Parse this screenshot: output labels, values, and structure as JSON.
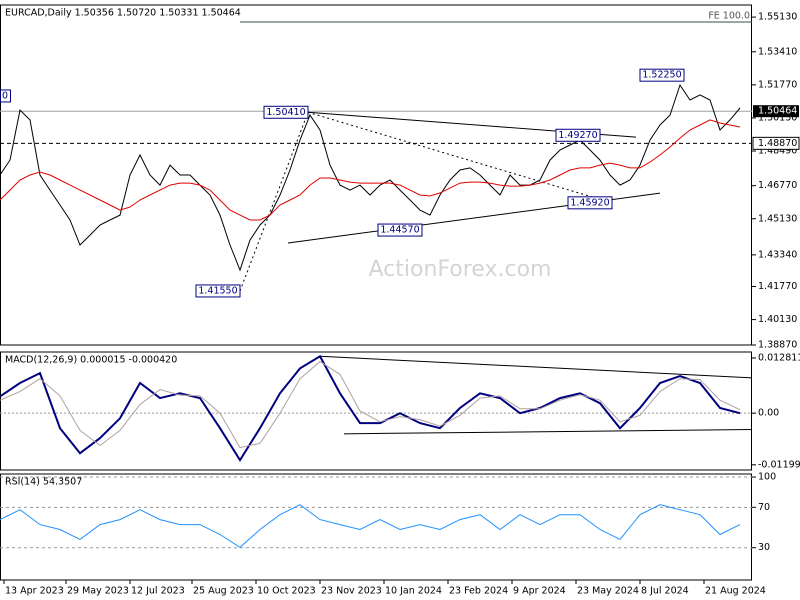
{
  "chart_data": [
    {
      "type": "line",
      "title": "EURCAD,Daily  1.50356 1.50720 1.50331 1.50464",
      "watermark": "ActionForex.com",
      "xlim": [
        0,
        376
      ],
      "ylim": [
        1.3887,
        1.5573
      ],
      "yticks": [
        {
          "value": 1.5513,
          "label": "1.55130"
        },
        {
          "value": 1.5341,
          "label": "1.53410"
        },
        {
          "value": 1.5177,
          "label": "1.51770"
        },
        {
          "value": 1.5013,
          "label": "1.50130"
        },
        {
          "value": 1.4849,
          "label": "1.48490"
        },
        {
          "value": 1.4677,
          "label": "1.46770"
        },
        {
          "value": 1.4513,
          "label": "1.45130"
        },
        {
          "value": 1.4334,
          "label": "1.43340"
        },
        {
          "value": 1.4177,
          "label": "1.41770"
        },
        {
          "value": 1.4013,
          "label": "1.40130"
        },
        {
          "value": 1.3887,
          "label": "1.38870"
        }
      ],
      "series": [
        {
          "color": "#000000",
          "line_width": 1,
          "x": [
            0,
            5,
            10,
            15,
            20,
            25,
            30,
            35,
            40,
            45,
            50,
            55,
            60,
            65,
            70,
            75,
            80,
            85,
            90,
            95,
            100,
            105,
            110,
            115,
            120,
            125,
            130,
            135,
            140,
            145,
            150,
            155,
            160,
            165,
            170,
            175,
            180,
            185,
            190,
            195,
            200,
            205,
            210,
            215,
            220,
            225,
            230,
            235,
            240,
            245,
            250,
            255,
            260,
            265,
            270,
            275,
            280,
            285,
            290,
            295,
            300,
            305,
            310,
            315,
            320,
            325,
            330,
            335,
            340,
            345,
            350,
            355,
            360,
            365,
            370
          ],
          "values": [
            1.473,
            1.4804,
            1.5052,
            1.5003,
            1.473,
            1.4655,
            1.4581,
            1.4507,
            1.4383,
            1.4432,
            1.4482,
            1.4507,
            1.4531,
            1.473,
            1.4829,
            1.473,
            1.468,
            1.4779,
            1.473,
            1.473,
            1.468,
            1.4631,
            1.4531,
            1.4383,
            1.4259,
            1.4407,
            1.4482,
            1.4531,
            1.4631,
            1.4755,
            1.4903,
            1.5027,
            1.4953,
            1.4779,
            1.468,
            1.4655,
            1.468,
            1.4631,
            1.468,
            1.4705,
            1.4655,
            1.4606,
            1.4556,
            1.4531,
            1.4631,
            1.4705,
            1.4755,
            1.4765,
            1.473,
            1.468,
            1.4631,
            1.473,
            1.468,
            1.468,
            1.4705,
            1.4804,
            1.4854,
            1.4879,
            1.4903,
            1.4854,
            1.4804,
            1.473,
            1.468,
            1.4705,
            1.4779,
            1.4903,
            1.4978,
            1.5027,
            1.5176,
            1.5102,
            1.5127,
            1.5102,
            1.4953,
            1.5003,
            1.5062
          ]
        },
        {
          "color": "#e00000",
          "line_width": 1,
          "x": [
            0,
            5,
            10,
            15,
            20,
            25,
            30,
            35,
            40,
            45,
            50,
            55,
            60,
            65,
            70,
            75,
            80,
            85,
            90,
            95,
            100,
            105,
            110,
            115,
            120,
            125,
            130,
            135,
            140,
            145,
            150,
            155,
            160,
            165,
            170,
            175,
            180,
            185,
            190,
            195,
            200,
            205,
            210,
            215,
            220,
            225,
            230,
            235,
            240,
            245,
            250,
            255,
            260,
            265,
            270,
            275,
            280,
            285,
            290,
            295,
            300,
            305,
            310,
            315,
            320,
            325,
            330,
            335,
            340,
            345,
            350,
            355,
            360,
            365,
            370
          ],
          "values": [
            1.4606,
            1.4655,
            1.4705,
            1.473,
            1.4745,
            1.473,
            1.4705,
            1.468,
            1.4655,
            1.4631,
            1.4606,
            1.4581,
            1.4556,
            1.4571,
            1.4606,
            1.4631,
            1.4655,
            1.468,
            1.469,
            1.469,
            1.468,
            1.4655,
            1.4606,
            1.4556,
            1.4531,
            1.4507,
            1.4507,
            1.4531,
            1.4581,
            1.4606,
            1.4631,
            1.468,
            1.4715,
            1.4715,
            1.4705,
            1.4695,
            1.469,
            1.469,
            1.469,
            1.469,
            1.468,
            1.4655,
            1.4631,
            1.4626,
            1.4641,
            1.4665,
            1.469,
            1.4695,
            1.4695,
            1.469,
            1.468,
            1.4675,
            1.4675,
            1.468,
            1.469,
            1.4705,
            1.473,
            1.4755,
            1.4765,
            1.4765,
            1.4779,
            1.4789,
            1.4779,
            1.4765,
            1.4765,
            1.4794,
            1.4829,
            1.4869,
            1.4913,
            1.4953,
            1.4978,
            1.5003,
            1.4988,
            1.4978,
            1.4968
          ]
        }
      ],
      "annotations": [
        {
          "label": "1.50410",
          "value": 1.5041,
          "x": 154
        },
        {
          "label": "1.41550",
          "value": 1.4155,
          "x": 120
        },
        {
          "label": "1.44570",
          "value": 1.4457,
          "x": 211
        },
        {
          "label": "1.49270",
          "value": 1.4927,
          "x": 300
        },
        {
          "label": "1.45920",
          "value": 1.4592,
          "x": 306
        },
        {
          "label": "1.52250",
          "value": 1.5225,
          "x": 342
        }
      ],
      "levels": [
        {
          "value": 1.5489,
          "label": "FE 100.0",
          "x": [
            120,
            376
          ],
          "style": "solid"
        },
        {
          "value": 1.50464,
          "label": "1.50464",
          "style": "current"
        },
        {
          "value": 1.4887,
          "label": "1.48870",
          "style": "dashed"
        },
        {
          "value": 1.5122,
          "label": "0",
          "style": "edge"
        }
      ],
      "trendlines": [
        {
          "x": [
            154,
            318
          ],
          "y": [
            1.5041,
            1.4918
          ],
          "style": "solid"
        },
        {
          "x": [
            144,
            330
          ],
          "y": [
            1.4393,
            1.464
          ],
          "style": "solid"
        },
        {
          "x": [
            120,
            154
          ],
          "y": [
            1.4155,
            1.5041
          ],
          "style": "dotted"
        },
        {
          "x": [
            154,
            306
          ],
          "y": [
            1.5041,
            1.4592
          ],
          "style": "dotted"
        }
      ]
    },
    {
      "type": "line",
      "title": "MACD(12,26,9) 0.000015 -0.000420",
      "xlim": [
        0,
        376
      ],
      "ylim": [
        -0.0132,
        0.0142
      ],
      "yticks": [
        0.012811,
        {
          "value": 0,
          "label": "0.00"
        },
        -0.011993
      ],
      "zero_line": true,
      "series": [
        {
          "color": "#000080",
          "line_width": 2,
          "x": [
            0,
            10,
            20,
            30,
            40,
            50,
            60,
            70,
            80,
            90,
            100,
            110,
            120,
            130,
            140,
            150,
            160,
            170,
            180,
            190,
            200,
            210,
            220,
            230,
            240,
            250,
            260,
            270,
            280,
            290,
            300,
            310,
            320,
            330,
            340,
            350,
            360,
            370
          ],
          "values": [
            0.0039,
            0.007,
            0.0093,
            -0.0035,
            -0.0093,
            -0.0058,
            -0.0012,
            0.007,
            0.0035,
            0.0046,
            0.0035,
            -0.0035,
            -0.0109,
            -0.0035,
            0.0046,
            0.0104,
            0.0132,
            0.0046,
            -0.0023,
            -0.0023,
            0.0,
            -0.0023,
            -0.0035,
            0.0012,
            0.0046,
            0.0035,
            0.0,
            0.0012,
            0.0035,
            0.0046,
            0.0023,
            -0.0035,
            0.0012,
            0.007,
            0.0086,
            0.007,
            0.0012,
            0.0
          ]
        },
        {
          "color": "#b0a0a0",
          "line_width": 1,
          "x": [
            0,
            10,
            20,
            30,
            40,
            50,
            60,
            70,
            80,
            90,
            100,
            110,
            120,
            130,
            140,
            150,
            160,
            170,
            180,
            190,
            200,
            210,
            220,
            230,
            240,
            250,
            260,
            270,
            280,
            290,
            300,
            310,
            320,
            330,
            340,
            350,
            360,
            370
          ],
          "values": [
            0.003,
            0.005,
            0.008,
            0.004,
            -0.004,
            -0.0075,
            -0.004,
            0.002,
            0.0055,
            0.0042,
            0.004,
            0.0,
            -0.008,
            -0.007,
            0.0,
            0.008,
            0.012,
            0.009,
            0.0005,
            -0.002,
            -0.0008,
            -0.0015,
            -0.003,
            -0.0005,
            0.0035,
            0.004,
            0.001,
            0.001,
            0.003,
            0.0043,
            0.003,
            -0.002,
            -0.0005,
            0.005,
            0.008,
            0.0078,
            0.003,
            0.0008
          ]
        }
      ],
      "trendlines": [
        {
          "x": [
            160,
            376
          ],
          "y": [
            0.0132,
            0.0082
          ],
          "style": "solid"
        },
        {
          "x": [
            172,
            376
          ],
          "y": [
            -0.0048,
            -0.0038
          ],
          "style": "solid"
        }
      ]
    },
    {
      "type": "line",
      "title": "RSI(14) 54.3507",
      "xlim": [
        0,
        376
      ],
      "ylim": [
        -2,
        103
      ],
      "yticks": [
        100,
        70,
        30
      ],
      "grid": true,
      "xticks": [
        {
          "value": 2,
          "label": "13 Apr 2023"
        },
        {
          "value": 33,
          "label": "29 May 2023"
        },
        {
          "value": 65,
          "label": "12 Jul 2023"
        },
        {
          "value": 96,
          "label": "25 Aug 2023"
        },
        {
          "value": 128,
          "label": "10 Oct 2023"
        },
        {
          "value": 160,
          "label": "23 Nov 2023"
        },
        {
          "value": 192,
          "label": "10 Jan 2024"
        },
        {
          "value": 224,
          "label": "23 Feb 2024"
        },
        {
          "value": 256,
          "label": "9 Apr 2024"
        },
        {
          "value": 288,
          "label": "23 May 2024"
        },
        {
          "value": 320,
          "label": "8 Jul 2024"
        },
        {
          "value": 352,
          "label": "21 Aug 2024"
        }
      ],
      "series": [
        {
          "color": "#1e90ff",
          "line_width": 1,
          "x": [
            0,
            10,
            20,
            30,
            40,
            50,
            60,
            70,
            80,
            90,
            100,
            110,
            120,
            130,
            140,
            150,
            160,
            170,
            180,
            190,
            200,
            210,
            220,
            230,
            240,
            250,
            260,
            270,
            280,
            290,
            300,
            310,
            320,
            330,
            340,
            350,
            360,
            370
          ],
          "values": [
            57.8,
            67.6,
            52.9,
            48.0,
            38.2,
            52.9,
            57.8,
            67.6,
            57.8,
            52.9,
            52.9,
            43.1,
            30.3,
            48.0,
            62.7,
            72.6,
            57.8,
            52.9,
            48.0,
            57.8,
            48.0,
            52.9,
            48.0,
            57.8,
            62.7,
            48.0,
            62.7,
            52.9,
            62.7,
            62.7,
            48.0,
            38.2,
            62.7,
            72.6,
            67.6,
            62.7,
            43.1,
            52.9
          ]
        }
      ]
    }
  ]
}
